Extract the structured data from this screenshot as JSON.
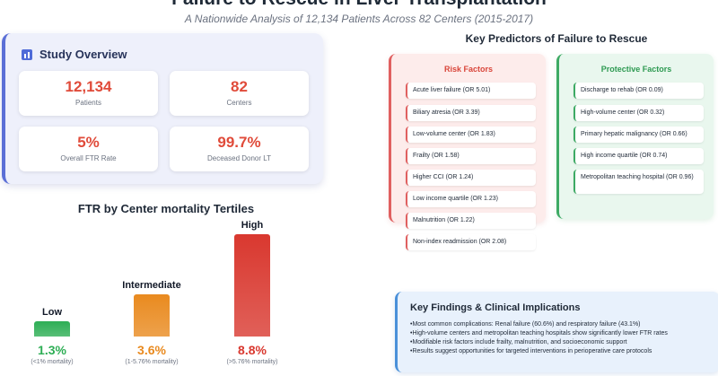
{
  "header": {
    "title": "Failure to Rescue in Liver Transplantation",
    "subtitle": "A Nationwide Analysis of 12,134 Patients Across 82 Centers (2015-2017)"
  },
  "overview": {
    "title": "Study Overview",
    "icon": "bar-chart-icon",
    "stats": [
      {
        "value": "12,134",
        "label": "Patients"
      },
      {
        "value": "82",
        "label": "Centers"
      },
      {
        "value": "5%",
        "label": "Overall FTR Rate"
      },
      {
        "value": "99.7%",
        "label": "Deceased Donor LT"
      }
    ]
  },
  "chart_data": {
    "type": "bar",
    "title": "FTR by Center mortality Tertiles",
    "categories": [
      "Low",
      "Intermediate",
      "High"
    ],
    "values": [
      1.3,
      3.6,
      8.8
    ],
    "value_labels": [
      "1.3%",
      "3.6%",
      "8.8%"
    ],
    "notes": [
      "(<1% mortality)",
      "(1-5.76% mortality)",
      "(>5.76% mortality)"
    ],
    "colors": [
      "#2eae55",
      "#e98a1f",
      "#d9382f"
    ],
    "ylim": [
      0,
      8.8
    ]
  },
  "predictors": {
    "title": "Key Predictors of Failure to Rescue",
    "risk": {
      "title": "Risk Factors",
      "items": [
        "Acute liver failure (OR 5.01)",
        "Biliary atresia (OR 3.39)",
        "Low-volume center (OR 1.83)",
        "Frailty (OR 1.58)",
        "Higher CCI (OR 1.24)",
        "Low income quartile (OR 1.23)",
        "Malnutrition (OR 1.22)",
        "Non-index readmission (OR 2.08)"
      ]
    },
    "protective": {
      "title": "Protective Factors",
      "items": [
        "Discharge to rehab (OR 0.09)",
        "High-volume center (OR 0.32)",
        "Primary hepatic malignancy (OR 0.66)",
        "High income quartile (OR 0.74)",
        "Metropolitan teaching hospital (OR 0.96)"
      ]
    }
  },
  "findings": {
    "title": "Key Findings & Clinical Implications",
    "items": [
      "Most common complications: Renal failure (60.6%) and respiratory failure (43.1%)",
      "High-volume centers and metropolitan teaching hospitals show significantly lower FTR rates",
      "Modifiable risk factors include frailty, malnutrition, and socioeconomic support",
      "Results suggest opportunities for targeted interventions in perioperative care protocols"
    ]
  },
  "colors": {
    "accent": "#e04b3a",
    "risk": "#e06060",
    "protective": "#3daa64",
    "findings": "#4a90d9"
  }
}
